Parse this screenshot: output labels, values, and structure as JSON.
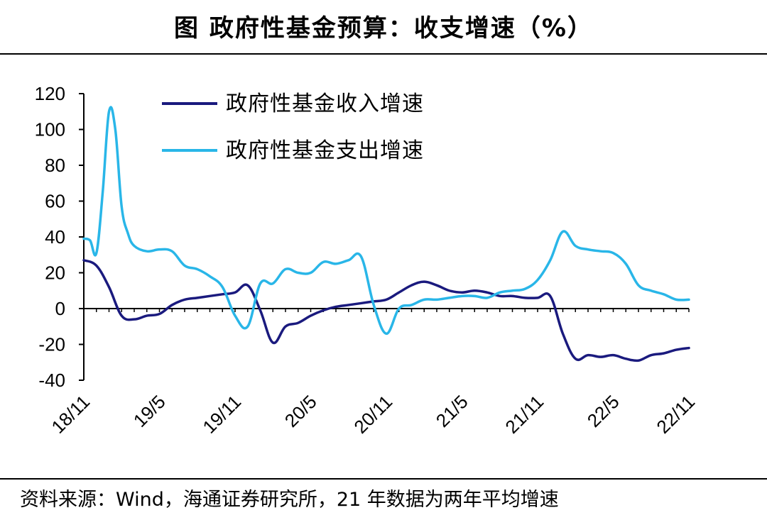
{
  "title": "图  政府性基金预算：收支增速（%）",
  "source": "资料来源：Wind，海通证券研究所，21 年数据为两年平均增速",
  "colors": {
    "income": "#1a1a7e",
    "expense": "#29b6e8"
  },
  "chart_data": {
    "type": "line",
    "title": "政府性基金预算：收支增速（%）",
    "xlabel": "",
    "ylabel": "",
    "ylim": [
      -40,
      120
    ],
    "yticks": [
      "120",
      "100",
      "80",
      "60",
      "40",
      "20",
      "0",
      "-20",
      "-40"
    ],
    "ytick_values": [
      120,
      100,
      80,
      60,
      40,
      20,
      0,
      -20,
      -40
    ],
    "xtick_labels": [
      "18/11",
      "19/5",
      "19/11",
      "20/5",
      "20/11",
      "21/5",
      "21/11",
      "22/5",
      "22/11"
    ],
    "xtick_months": [
      0,
      6,
      12,
      18,
      24,
      30,
      36,
      42,
      48
    ],
    "x_range_months": [
      0,
      48
    ],
    "legend": [
      "政府性基金收入增速",
      "政府性基金支出增速"
    ],
    "series": [
      {
        "name": "政府性基金收入增速",
        "months": [
          0,
          1,
          2,
          3,
          4,
          5,
          6,
          7,
          8,
          9,
          10,
          11,
          12,
          13,
          14,
          15,
          16,
          17,
          18,
          19,
          20,
          21,
          22,
          23,
          24,
          25,
          26,
          27,
          28,
          29,
          30,
          31,
          32,
          33,
          34,
          35,
          36,
          37,
          38,
          39,
          40,
          41,
          42,
          43,
          44,
          45,
          46,
          47,
          48
        ],
        "values": [
          27,
          24,
          12,
          -4,
          -6,
          -4,
          -3,
          2,
          5,
          6,
          7,
          8,
          9,
          13,
          -1,
          -19,
          -10,
          -8,
          -4,
          -1,
          1,
          2,
          3,
          4,
          5,
          9,
          13,
          15,
          13,
          10,
          9,
          10,
          9,
          7,
          7,
          6,
          6,
          7,
          -14,
          -28,
          -26,
          -27,
          -26,
          -28,
          -29,
          -26,
          -25,
          -23,
          -22
        ]
      },
      {
        "name": "政府性基金支出增速",
        "months": [
          0,
          0.5,
          1,
          1.5,
          2,
          2.5,
          3,
          3.5,
          4,
          5,
          6,
          7,
          8,
          9,
          10,
          11,
          12,
          13,
          14,
          15,
          16,
          17,
          18,
          19,
          20,
          21,
          22,
          23,
          24,
          25,
          26,
          27,
          28,
          29,
          30,
          31,
          32,
          33,
          34,
          35,
          36,
          37,
          38,
          39,
          40,
          41,
          42,
          43,
          44,
          45,
          46,
          47,
          48
        ],
        "values": [
          39,
          38,
          31,
          65,
          110,
          100,
          57,
          42,
          35,
          32,
          33,
          32,
          24,
          22,
          18,
          12,
          -4,
          -10,
          14,
          14,
          22,
          20,
          20,
          26,
          25,
          27,
          29,
          2,
          -14,
          0,
          2,
          5,
          5,
          6,
          7,
          7,
          6,
          9,
          10,
          11,
          16,
          27,
          43,
          35,
          33,
          32,
          31,
          25,
          13,
          10,
          8,
          5,
          5
        ]
      }
    ]
  }
}
